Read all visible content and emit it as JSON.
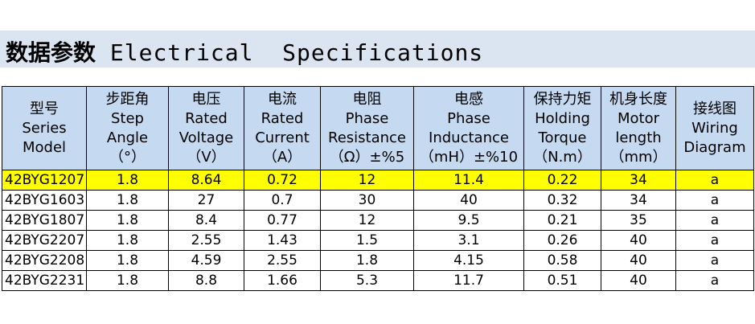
{
  "title": {
    "cn": "数据参数",
    "en": "Electrical  Specifications"
  },
  "headers": [
    {
      "cn": "型号",
      "en1": "Series",
      "en2": "Model",
      "unit": ""
    },
    {
      "cn": "步距角",
      "en1": "Step",
      "en2": "Angle",
      "unit": "（°）"
    },
    {
      "cn": "电压",
      "en1": "Rated",
      "en2": "Voltage",
      "unit": "（V）"
    },
    {
      "cn": "电流",
      "en1": "Rated",
      "en2": "Current",
      "unit": "（A）"
    },
    {
      "cn": "电阻",
      "en1": "Phase",
      "en2": "Resistance",
      "unit": "（Ω）±%5"
    },
    {
      "cn": "电感",
      "en1": "Phase",
      "en2": "Inductance",
      "unit": "（mH）±%10"
    },
    {
      "cn": "保持力矩",
      "en1": "Holding",
      "en2": "Torque",
      "unit": "（N.m）"
    },
    {
      "cn": "机身长度",
      "en1": "Motor",
      "en2": "length",
      "unit": "（mm）"
    },
    {
      "cn": "接线图",
      "en1": "Wiring",
      "en2": "Diagram",
      "unit": ""
    }
  ],
  "rows": [
    [
      "42BYG1207",
      "1.8",
      "8.64",
      "0.72",
      "12",
      "11.4",
      "0.22",
      "34",
      "a"
    ],
    [
      "42BYG1603",
      "1.8",
      "27",
      "0.7",
      "30",
      "40",
      "0.32",
      "34",
      "a"
    ],
    [
      "42BYG1807",
      "1.8",
      "8.4",
      "0.77",
      "12",
      "9.5",
      "0.21",
      "35",
      "a"
    ],
    [
      "42BYG2207",
      "1.8",
      "2.55",
      "1.43",
      "1.5",
      "3.1",
      "0.26",
      "40",
      "a"
    ],
    [
      "42BYG2208",
      "1.8",
      "4.59",
      "2.55",
      "1.8",
      "4.15",
      "0.58",
      "40",
      "a"
    ],
    [
      "42BYG2231",
      "1.8",
      "8.8",
      "1.66",
      "5.3",
      "11.7",
      "0.51",
      "40",
      "a"
    ]
  ],
  "highlight_row": 0,
  "colors": {
    "title_bg": "#dbe5f1",
    "header_bg": "#c5d9f1",
    "highlight": "#ffff00"
  }
}
